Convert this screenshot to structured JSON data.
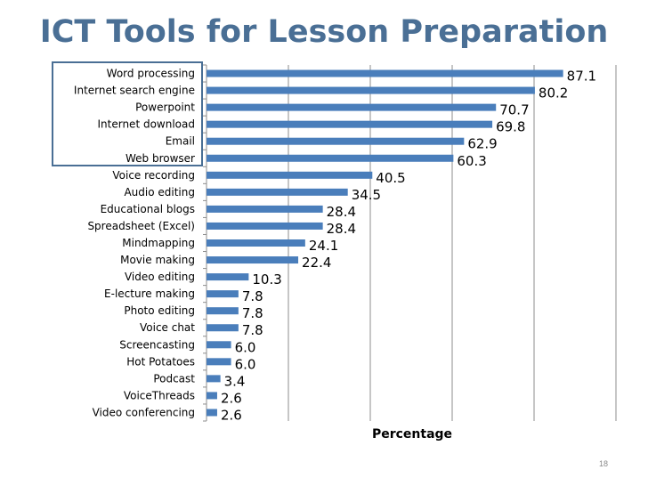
{
  "slide": {
    "number": "18",
    "title_color": "#4a6f95"
  },
  "chart_data": {
    "type": "bar",
    "orientation": "horizontal",
    "title": "ICT Tools for Lesson Preparation",
    "xlabel": "Percentage",
    "ylabel": "",
    "xlim": [
      0,
      100
    ],
    "grid": true,
    "bar_color": "#4a7ebb",
    "categories": [
      "Word processing",
      "Internet search engine",
      "Powerpoint",
      "Internet download",
      "Email",
      "Web browser",
      "Voice recording",
      "Audio editing",
      "Educational blogs",
      "Spreadsheet (Excel)",
      "Mindmapping",
      "Movie making",
      "Video editing",
      "E-lecture making",
      "Photo editing",
      "Voice chat",
      "Screencasting",
      "Hot Potatoes",
      "Podcast",
      "VoiceThreads",
      "Video conferencing"
    ],
    "values": [
      87.1,
      80.2,
      70.7,
      69.8,
      62.9,
      60.3,
      40.5,
      34.5,
      28.4,
      28.4,
      24.1,
      22.4,
      10.3,
      7.8,
      7.8,
      7.8,
      6.0,
      6.0,
      3.4,
      2.6,
      2.6
    ],
    "value_labels": [
      "87.1",
      "80.2",
      "70.7",
      "69.8",
      "62.9",
      "60.3",
      "40.5",
      "34.5",
      "28.4",
      "28.4",
      "24.1",
      "22.4",
      "10.3",
      "7.8",
      "7.8",
      "7.8",
      "6.0",
      "6.0",
      "3.4",
      "2.6",
      "2.6"
    ],
    "highlighted_categories": [
      "Word processing",
      "Internet search engine",
      "Powerpoint",
      "Internet download",
      "Email",
      "Web browser"
    ]
  }
}
